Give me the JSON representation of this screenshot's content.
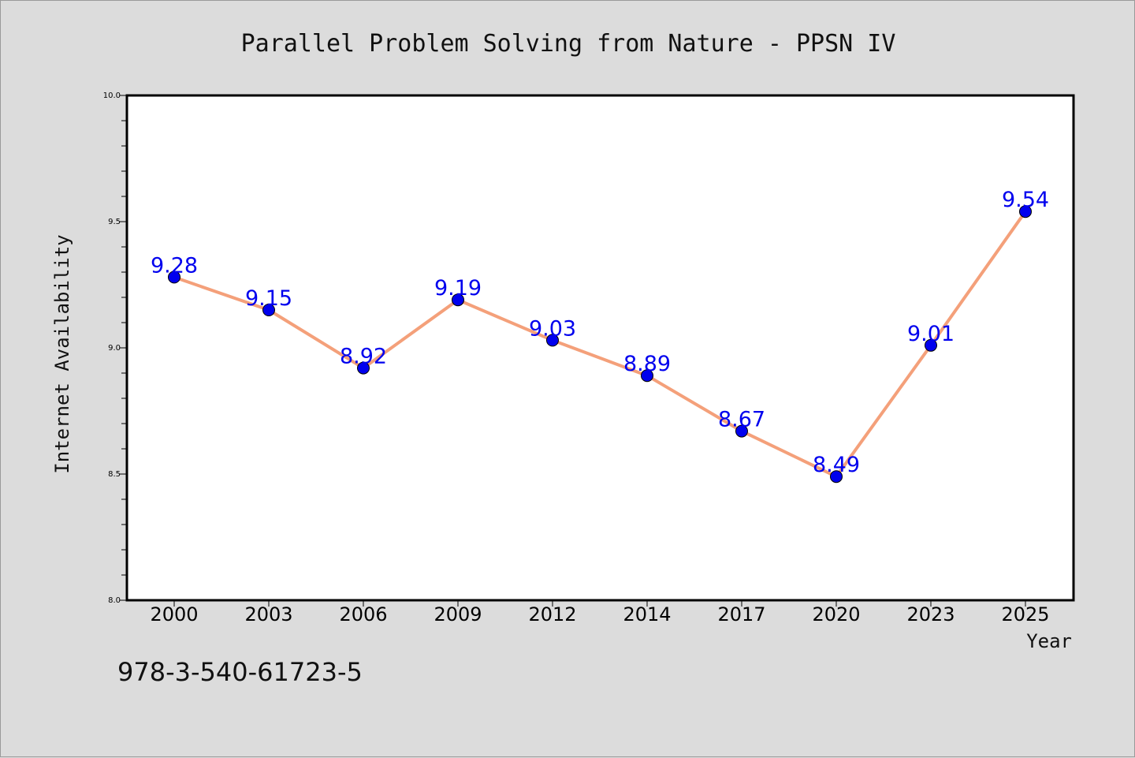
{
  "chart_data": {
    "type": "line",
    "title": "Parallel Problem Solving from Nature - PPSN IV",
    "xlabel": "Year",
    "ylabel": "Internet Availability",
    "categories": [
      "2000",
      "2003",
      "2006",
      "2009",
      "2012",
      "2014",
      "2017",
      "2020",
      "2023",
      "2025"
    ],
    "series": [
      {
        "values": [
          9.28,
          9.15,
          8.92,
          9.19,
          9.03,
          8.89,
          8.67,
          8.49,
          9.01,
          9.54
        ],
        "line_color": "#f4a07a",
        "marker_color": "#0000ee",
        "label_color": "#0000ee"
      }
    ],
    "ylim": [
      8.0,
      10.0
    ],
    "yticks": [
      "8.0",
      "8.5",
      "9.0",
      "9.5",
      "10.0"
    ],
    "grid": false,
    "legend": "none"
  },
  "footer": {
    "isbn": "978-3-540-61723-5"
  }
}
